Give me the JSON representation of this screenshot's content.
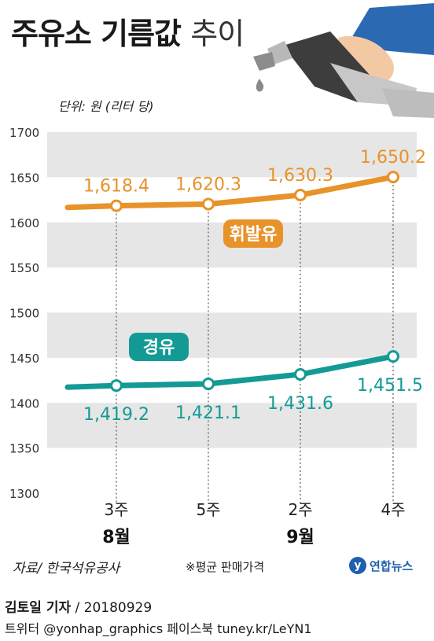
{
  "header": {
    "title_bold": "주유소 기름값",
    "title_light": "추이",
    "unit": "단위: 원 (리터 당)"
  },
  "chart_data": {
    "type": "line",
    "categories": [
      "3주",
      "5주",
      "2주",
      "4주"
    ],
    "month_groups": [
      {
        "label": "8월",
        "weeks": [
          "3주",
          "5주"
        ]
      },
      {
        "label": "9월",
        "weeks": [
          "2주",
          "4주"
        ]
      }
    ],
    "y_ticks": [
      "1700",
      "1650",
      "1600",
      "1550",
      "1500",
      "1450",
      "1400",
      "1350",
      "1300"
    ],
    "ylim": [
      1300,
      1700
    ],
    "series": [
      {
        "name": "휘발유",
        "values": [
          1618.4,
          1620.3,
          1630.3,
          1650.2
        ],
        "labels": [
          "1,618.4",
          "1,620.3",
          "1,630.3",
          "1,650.2"
        ],
        "color": "#e8922a"
      },
      {
        "name": "경유",
        "values": [
          1419.2,
          1421.1,
          1431.6,
          1451.5
        ],
        "labels": [
          "1,419.2",
          "1,421.1",
          "1,431.6",
          "1,451.5"
        ],
        "color": "#149a95"
      }
    ],
    "grid": "alternating-bands",
    "band_color": "#e6e6e6"
  },
  "footer": {
    "source": "자료/ 한국석유공사",
    "note": "※평균 판매가격",
    "logo_mark": "y",
    "logo_text": "연합뉴스",
    "reporter": "김토일 기자",
    "date": " / 20180929",
    "social": "트위터 @yonhap_graphics  페이스북 tuney.kr/LeYN1"
  }
}
